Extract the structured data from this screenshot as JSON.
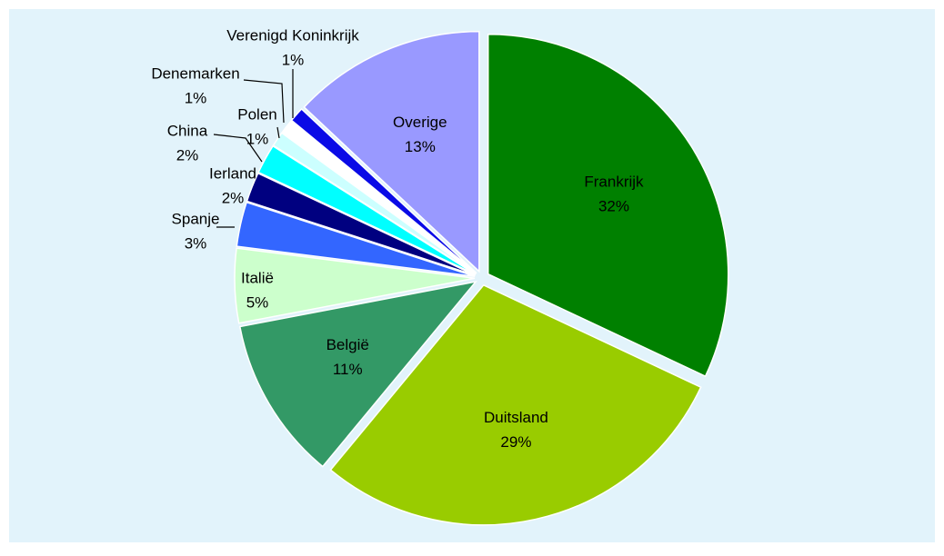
{
  "chart_data": {
    "type": "pie",
    "categories": [
      "Frankrijk",
      "Duitsland",
      "België",
      "Italië",
      "Spanje",
      "Ierland",
      "China",
      "Polen",
      "Denemarken",
      "Verenigd Koninkrijk",
      "Overige"
    ],
    "values": [
      32,
      29,
      11,
      5,
      3,
      2,
      2,
      1,
      1,
      1,
      13
    ],
    "value_labels": [
      "32%",
      "29%",
      "11%",
      "5%",
      "3%",
      "2%",
      "2%",
      "1%",
      "1%",
      "1%",
      "13%"
    ],
    "colors": [
      "#008000",
      "#99cc00",
      "#339966",
      "#ccffcc",
      "#3366ff",
      "#000080",
      "#00ffff",
      "#ccffff",
      "#ffffff",
      "#0a0ae6",
      "#9999ff"
    ]
  }
}
